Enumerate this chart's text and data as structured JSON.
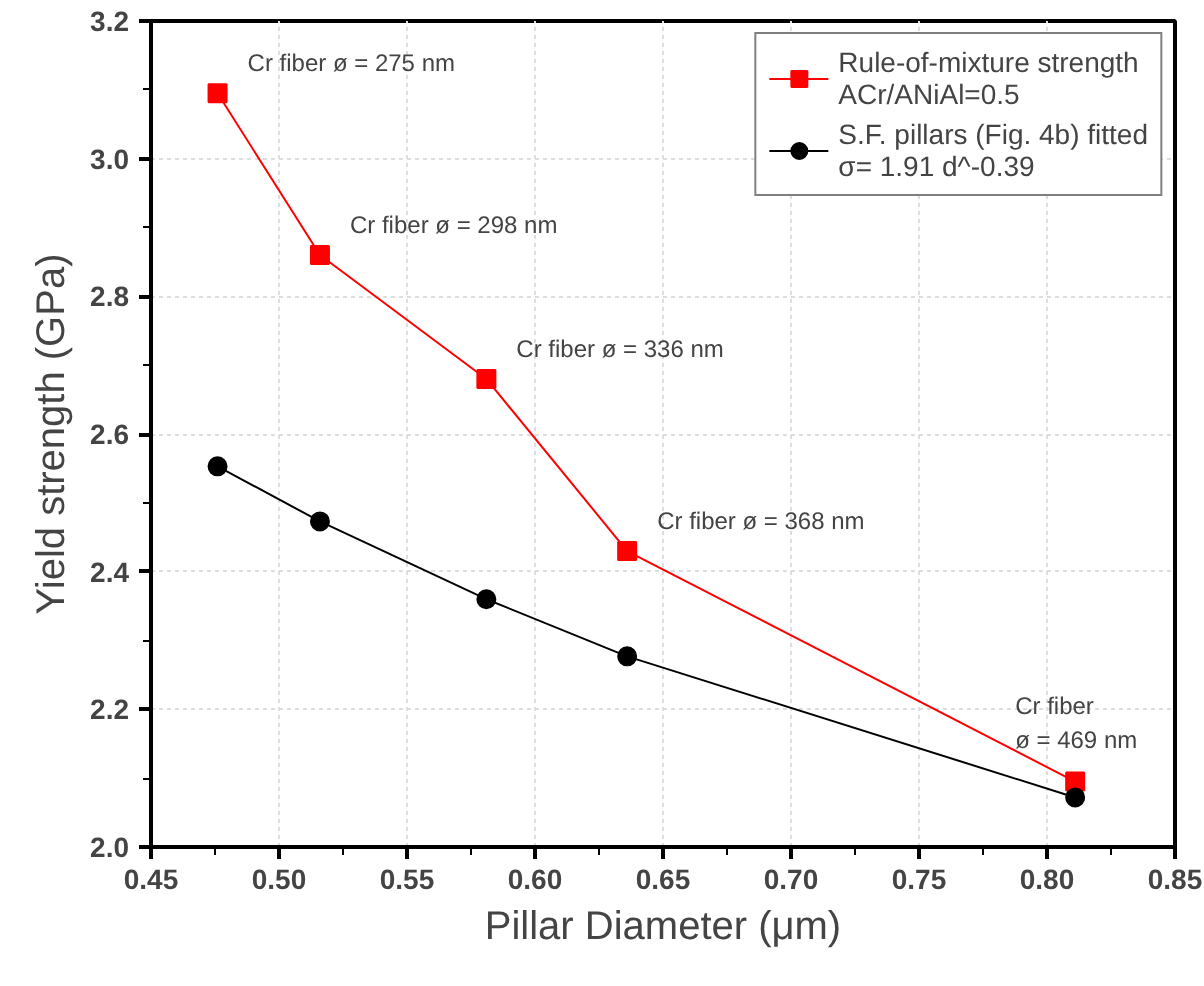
{
  "chart_data": {
    "type": "line",
    "xlabel": "Pillar Diameter (μm)",
    "ylabel": "Yield strength (GPa)",
    "x": [
      0.476,
      0.516,
      0.581,
      0.636,
      0.811
    ],
    "series": [
      {
        "name": "Rule-of-mixture strength\nACr/ANiAl=0.5",
        "color": "#ff0000",
        "marker": "square",
        "values": [
          3.095,
          2.86,
          2.68,
          2.43,
          2.095
        ]
      },
      {
        "name": "S.F. pillars (Fig. 4b) fitted\nσ= 1.91 d^-0.39",
        "color": "#000000",
        "marker": "circle",
        "values": [
          2.553,
          2.473,
          2.36,
          2.277,
          2.072
        ]
      }
    ],
    "xlim": [
      0.45,
      0.85
    ],
    "ylim": [
      2.0,
      3.2
    ],
    "xticks": [
      {
        "value": 0.45,
        "label": "0.45"
      },
      {
        "value": 0.5,
        "label": "0.50"
      },
      {
        "value": 0.55,
        "label": "0.55"
      },
      {
        "value": 0.6,
        "label": "0.60"
      },
      {
        "value": 0.65,
        "label": "0.65"
      },
      {
        "value": 0.7,
        "label": "0.70"
      },
      {
        "value": 0.75,
        "label": "0.75"
      },
      {
        "value": 0.8,
        "label": "0.80"
      },
      {
        "value": 0.85,
        "label": "0.85"
      }
    ],
    "yticks": [
      {
        "value": 2.0,
        "label": "2.0"
      },
      {
        "value": 2.2,
        "label": "2.2"
      },
      {
        "value": 2.4,
        "label": "2.4"
      },
      {
        "value": 2.6,
        "label": "2.6"
      },
      {
        "value": 2.8,
        "label": "2.8"
      },
      {
        "value": 3.0,
        "label": "3.0"
      },
      {
        "value": 3.2,
        "label": "3.2"
      }
    ],
    "annotations": [
      {
        "text": "Cr fiber ø = 275 nm",
        "x": 0.476,
        "y": 3.095
      },
      {
        "text": "Cr fiber ø = 298 nm",
        "x": 0.516,
        "y": 2.86
      },
      {
        "text": "Cr fiber ø = 336 nm",
        "x": 0.581,
        "y": 2.68
      },
      {
        "text": "Cr fiber ø = 368 nm",
        "x": 0.636,
        "y": 2.43
      },
      {
        "text": "Cr fiber\nø = 469 nm",
        "x": 0.811,
        "y": 2.095
      }
    ],
    "grid": true,
    "legend": "top right",
    "line_style": "solid"
  }
}
